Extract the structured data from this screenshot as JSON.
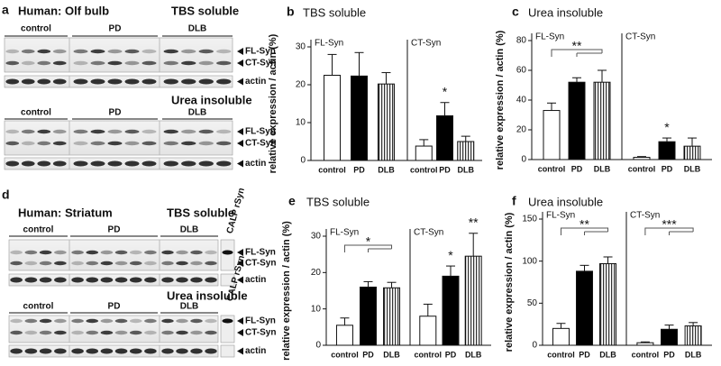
{
  "blots": [
    {
      "panel": "a",
      "title": "Human: Olf bulb",
      "sections": [
        {
          "title": "TBS soluble",
          "groups": [
            "control",
            "PD",
            "DLB"
          ],
          "bands": [
            "FL-Syn",
            "CT-Syn"
          ],
          "loading": "actin"
        },
        {
          "title": "Urea insoluble",
          "groups": [
            "control",
            "PD",
            "DLB"
          ],
          "bands": [
            "FL-Syn",
            "CT-Syn"
          ],
          "loading": "actin"
        }
      ]
    },
    {
      "panel": "d",
      "title": "Human: Striatum",
      "reference": "CALP rSyn",
      "sections": [
        {
          "title": "TBS soluble",
          "groups": [
            "control",
            "PD",
            "DLB"
          ],
          "bands": [
            "FL-Syn",
            "CT-Syn"
          ],
          "loading": "actin"
        },
        {
          "title": "Urea insoluble",
          "groups": [
            "control",
            "PD",
            "DLB"
          ],
          "bands": [
            "FL-Syn",
            "CT-Syn"
          ],
          "loading": "actin"
        }
      ]
    }
  ],
  "chart_data": [
    {
      "panel": "b",
      "type": "bar",
      "title": "TBS soluble",
      "y_label": "relative expression / actin (%)",
      "groups": [
        "FL-Syn",
        "CT-Syn"
      ],
      "categories": [
        "control",
        "PD",
        "DLB",
        "control",
        "PD",
        "DLB"
      ],
      "values": [
        22.5,
        22.3,
        20.2,
        3.8,
        11.8,
        5
      ],
      "errors": [
        5.5,
        6.2,
        3,
        1.7,
        3.5,
        1.4
      ],
      "fills": [
        "white",
        "black",
        "striped",
        "white",
        "black",
        "striped"
      ],
      "ylim": [
        0,
        30
      ],
      "yticks": [
        0,
        10,
        20,
        30
      ],
      "annotations": [
        "*"
      ]
    },
    {
      "panel": "c",
      "type": "bar",
      "title": "Urea insoluble",
      "y_label": "relative expression / actin (%)",
      "groups": [
        "FL-Syn",
        "CT-Syn"
      ],
      "categories": [
        "control",
        "PD",
        "DLB",
        "control",
        "PD",
        "DLB"
      ],
      "values": [
        33,
        52,
        52,
        1.5,
        12,
        9
      ],
      "errors": [
        5,
        3,
        8,
        0.5,
        2.5,
        5.5
      ],
      "fills": [
        "white",
        "black",
        "striped",
        "white",
        "black",
        "striped"
      ],
      "ylim": [
        0,
        80
      ],
      "yticks": [
        0,
        20,
        40,
        60,
        80
      ],
      "annotations": [
        "**",
        "*"
      ]
    },
    {
      "panel": "e",
      "type": "bar",
      "title": "TBS soluble",
      "y_label": "relative expression / actin (%)",
      "groups": [
        "FL-Syn",
        "CT-Syn"
      ],
      "categories": [
        "control",
        "PD",
        "DLB",
        "control",
        "PD",
        "DLB"
      ],
      "values": [
        5.5,
        16,
        15.8,
        8,
        19,
        24.5
      ],
      "errors": [
        2,
        1.5,
        1.5,
        3.3,
        2.8,
        6.3
      ],
      "fills": [
        "white",
        "black",
        "striped",
        "white",
        "black",
        "striped"
      ],
      "ylim": [
        0,
        30
      ],
      "yticks": [
        0,
        10,
        20,
        30
      ],
      "annotations": [
        "*",
        "*",
        "**"
      ]
    },
    {
      "panel": "f",
      "type": "bar",
      "title": "Urea insoluble",
      "y_label": "relative expression / actin (%)",
      "groups": [
        "FL-Syn",
        "CT-Syn"
      ],
      "categories": [
        "control",
        "PD",
        "DLB",
        "control",
        "PD",
        "DLB"
      ],
      "values": [
        20,
        88,
        97,
        3,
        19,
        23
      ],
      "errors": [
        6,
        7,
        8,
        1,
        5,
        4
      ],
      "fills": [
        "white",
        "black",
        "striped",
        "white",
        "black",
        "striped"
      ],
      "ylim": [
        0,
        150
      ],
      "yticks": [
        0,
        50,
        100,
        150
      ],
      "annotations": [
        "**",
        "***"
      ]
    }
  ]
}
